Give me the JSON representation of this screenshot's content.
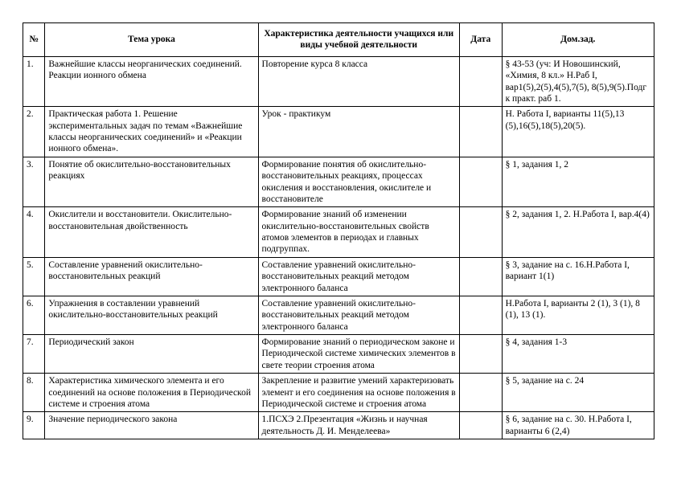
{
  "table": {
    "headers": {
      "num": "№",
      "topic": "Тема урока",
      "characteristic": "Характеристика деятельности учащихся или виды учебной деятельности",
      "date": "Дата",
      "homework": "Дом.зад."
    },
    "rows": [
      {
        "num": "1.",
        "topic": "Важнейшие классы неорганических соединений. Реакции ионного обмена",
        "characteristic": "Повторение курса 8 класса",
        "date": "",
        "homework": "§ 43-53 (уч: И Новошинский, «Химия, 8 кл.» Н.Раб I, вар1(5),2(5),4(5),7(5), 8(5),9(5).Подг к практ. раб 1."
      },
      {
        "num": "2.",
        "topic": "Практическая работа 1. Решение экспериментальных задач по темам «Важнейшие классы неорганических соединений» и «Реакции ионного обмена».",
        "characteristic": "Урок - практикум",
        "date": "",
        "homework": "Н. Работа I, варианты 11(5),13 (5),16(5),18(5),20(5)."
      },
      {
        "num": "3.",
        "topic": "Понятие об окислительно-восстановительных реакциях",
        "characteristic": "Формирование понятия об окислительно-восстановительных реакциях, процессах окисления и восстановления, окислителе и восстановителе",
        "date": "",
        "homework": "§ 1, задания 1, 2"
      },
      {
        "num": "4.",
        "topic": "Окислители и восстановители. Окислительно-восстановительная двойственность",
        "characteristic": "Формирование знаний об изменении окислительно-восстановительных свойств атомов элементов в периодах и главных подгруппах.",
        "date": "",
        "homework": "§ 2, задания 1, 2. Н.Работа I, вар.4(4)"
      },
      {
        "num": "5.",
        "topic": "Составление уравнений окислительно-восстановительных реакций",
        "characteristic": "Составление уравнений окислительно-восстановительных реакций методом электронного баланса",
        "date": "",
        "homework": "§ 3, задание на с. 16.Н.Работа I, вариант 1(1)"
      },
      {
        "num": "6.",
        "topic": "Упражнения в составлении уравнений окислительно-восстановительных реакций",
        "characteristic": "Составление уравнений окислительно-восстановительных реакций методом электронного баланса",
        "date": "",
        "homework": "Н.Работа I, варианты 2 (1), 3 (1), 8 (1), 13 (1)."
      },
      {
        "num": "7.",
        "topic": "Периодический закон",
        "characteristic": "Формирование знаний о периодическом законе и Периодической системе химических элементов в свете теории строения атома",
        "date": "",
        "homework": "§ 4, задания 1-3"
      },
      {
        "num": "8.",
        "topic": "Характеристика химического элемента и его соединений на основе положения в Периодической системе и строения атома",
        "characteristic": "Закрепление и развитие умений характеризовать элемент и его соединения на основе положения в Периодической системе и строения атома",
        "date": "",
        "homework": "§ 5, задание на с. 24"
      },
      {
        "num": "9.",
        "topic": "Значение периодического закона",
        "characteristic": "1.ПСХЭ 2.Презентация «Жизнь и научная деятельность Д. И. Менделеева»",
        "date": "",
        "homework": "§ 6, задание на с. 30. Н.Работа I, варианты 6 (2,4)"
      }
    ]
  }
}
